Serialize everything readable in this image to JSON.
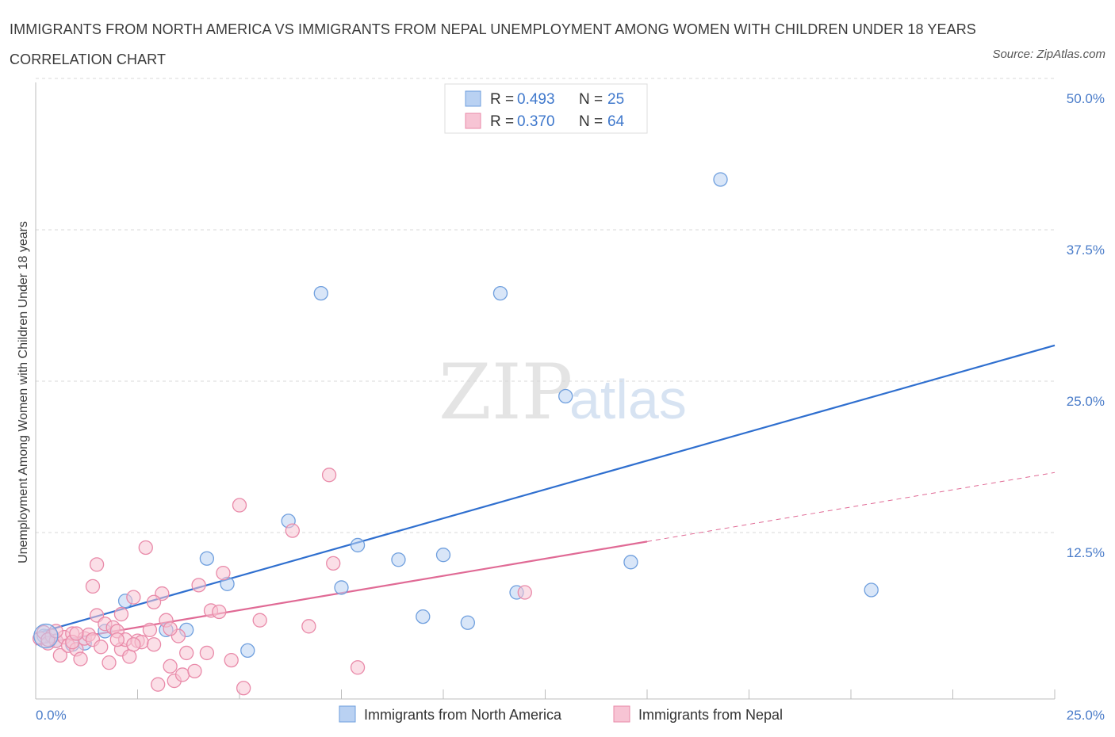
{
  "title": "IMMIGRANTS FROM NORTH AMERICA VS IMMIGRANTS FROM NEPAL UNEMPLOYMENT AMONG WOMEN WITH CHILDREN UNDER 18 YEARS CORRELATION CHART",
  "source": "Source: ZipAtlas.com",
  "watermark": {
    "zip": "ZIP",
    "atlas": "atlas"
  },
  "colors": {
    "blue_fill": "#b9d1f2",
    "blue_stroke": "#6f9fde",
    "blue_line": "#2f6fcf",
    "pink_fill": "#f7c4d4",
    "pink_stroke": "#e98aa9",
    "pink_line": "#e06a95",
    "grid": "#d8d8d8",
    "tick": "#4a7cc9"
  },
  "legend": {
    "rows": [
      {
        "r_label": "R = ",
        "r_value": "0.493",
        "n_label": "N = ",
        "n_value": "25",
        "color": "blue"
      },
      {
        "r_label": "R = ",
        "r_value": "0.370",
        "n_label": "N = ",
        "n_value": "64",
        "color": "pink"
      }
    ]
  },
  "chart_data": {
    "type": "scatter",
    "title": "IMMIGRANTS FROM NORTH AMERICA VS IMMIGRANTS FROM NEPAL UNEMPLOYMENT AMONG WOMEN WITH CHILDREN UNDER 18 YEARS CORRELATION CHART",
    "xlabel": "",
    "ylabel": "Unemployment Among Women with Children Under 18 years",
    "xlim": [
      0,
      25
    ],
    "ylim": [
      0,
      50
    ],
    "x_tick_labels": [
      "0.0%",
      "25.0%"
    ],
    "y_ticks": [
      12.5,
      25,
      37.5,
      50
    ],
    "y_tick_labels": [
      "12.5%",
      "25.0%",
      "37.5%",
      "50.0%"
    ],
    "grid": true,
    "legend_position": "top-center",
    "series": [
      {
        "name": "Immigrants from North America",
        "color": "blue",
        "trend": {
          "x": [
            0,
            25
          ],
          "y": [
            5.4,
            29.2
          ],
          "dashed_beyond": null
        },
        "points": [
          [
            0.2,
            5.2
          ],
          [
            0.5,
            4.8
          ],
          [
            0.9,
            4.5
          ],
          [
            1.2,
            4.6
          ],
          [
            1.7,
            5.6
          ],
          [
            2.2,
            8.1
          ],
          [
            3.2,
            5.7
          ],
          [
            3.7,
            5.7
          ],
          [
            4.2,
            11.6
          ],
          [
            4.7,
            9.5
          ],
          [
            5.2,
            4.0
          ],
          [
            6.2,
            14.7
          ],
          [
            7.0,
            33.5
          ],
          [
            7.5,
            9.2
          ],
          [
            7.9,
            12.7
          ],
          [
            8.9,
            11.5
          ],
          [
            9.5,
            6.8
          ],
          [
            10.0,
            11.9
          ],
          [
            10.6,
            6.3
          ],
          [
            11.4,
            33.5
          ],
          [
            11.8,
            8.8
          ],
          [
            13.0,
            25.0
          ],
          [
            14.6,
            11.3
          ],
          [
            16.8,
            42.9
          ],
          [
            20.5,
            9.0
          ]
        ]
      },
      {
        "name": "Immigrants from Nepal",
        "color": "pink",
        "trend": {
          "x": [
            0,
            15
          ],
          "y": [
            4.5,
            13.0
          ],
          "dashed_to": [
            25,
            18.7
          ]
        },
        "points": [
          [
            0.1,
            5.0
          ],
          [
            0.2,
            5.5
          ],
          [
            0.3,
            4.6
          ],
          [
            0.4,
            5.2
          ],
          [
            0.5,
            4.8
          ],
          [
            0.6,
            3.6
          ],
          [
            0.7,
            5.1
          ],
          [
            0.8,
            4.4
          ],
          [
            0.9,
            5.4
          ],
          [
            1.0,
            4.1
          ],
          [
            1.1,
            3.3
          ],
          [
            1.2,
            5.0
          ],
          [
            1.3,
            5.3
          ],
          [
            1.4,
            4.9
          ],
          [
            1.5,
            6.9
          ],
          [
            1.6,
            4.3
          ],
          [
            1.7,
            6.2
          ],
          [
            1.4,
            9.3
          ],
          [
            1.5,
            11.1
          ],
          [
            1.8,
            3.0
          ],
          [
            1.9,
            5.9
          ],
          [
            2.0,
            5.6
          ],
          [
            2.1,
            7.0
          ],
          [
            2.1,
            4.1
          ],
          [
            2.2,
            4.9
          ],
          [
            2.3,
            3.5
          ],
          [
            2.4,
            8.4
          ],
          [
            2.5,
            4.8
          ],
          [
            2.6,
            4.7
          ],
          [
            2.7,
            12.5
          ],
          [
            2.8,
            5.7
          ],
          [
            2.9,
            4.5
          ],
          [
            3.0,
            1.2
          ],
          [
            3.1,
            8.7
          ],
          [
            3.2,
            6.5
          ],
          [
            3.3,
            2.7
          ],
          [
            3.4,
            1.5
          ],
          [
            3.5,
            5.2
          ],
          [
            3.6,
            2.0
          ],
          [
            3.7,
            3.8
          ],
          [
            3.9,
            2.3
          ],
          [
            4.0,
            9.4
          ],
          [
            4.2,
            3.8
          ],
          [
            4.3,
            7.3
          ],
          [
            4.5,
            7.2
          ],
          [
            4.6,
            10.4
          ],
          [
            4.8,
            3.2
          ],
          [
            5.0,
            16.0
          ],
          [
            5.1,
            0.9
          ],
          [
            5.5,
            6.5
          ],
          [
            6.3,
            13.9
          ],
          [
            6.7,
            6.0
          ],
          [
            7.2,
            18.5
          ],
          [
            7.3,
            11.2
          ],
          [
            7.9,
            2.6
          ],
          [
            12.0,
            8.8
          ],
          [
            0.3,
            4.9
          ],
          [
            0.5,
            5.6
          ],
          [
            0.9,
            4.7
          ],
          [
            1.0,
            5.4
          ],
          [
            2.0,
            4.9
          ],
          [
            2.4,
            4.5
          ],
          [
            2.9,
            8.0
          ],
          [
            3.3,
            5.8
          ]
        ]
      }
    ]
  },
  "bottom_legend": [
    {
      "label": "Immigrants from North America",
      "color": "blue"
    },
    {
      "label": "Immigrants from Nepal",
      "color": "pink"
    }
  ]
}
